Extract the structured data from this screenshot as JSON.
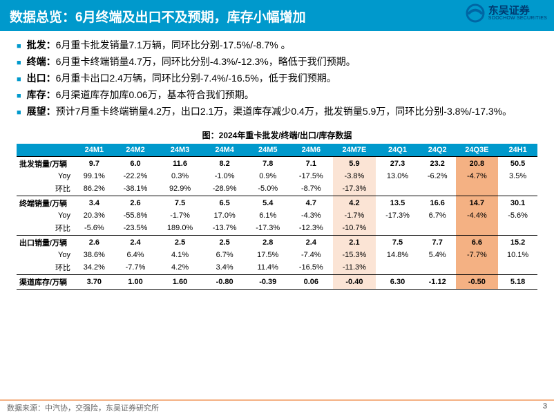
{
  "header": {
    "title": "数据总览：6月终端及出口不及预期，库存小幅增加"
  },
  "logo": {
    "cn": "东吴证券",
    "en": "SOOCHOW SECURITIES"
  },
  "bullets": [
    {
      "label": "批发：",
      "text": "6月重卡批发销量7.1万辆，同环比分别-17.5%/-8.7% 。"
    },
    {
      "label": "终端：",
      "text": "6月重卡终端销量4.7万，同环比分别-4.3%/-12.3%，略低于我们预期。"
    },
    {
      "label": "出口：",
      "text": "6月重卡出口2.4万辆，同环比分别-7.4%/-16.5%，低于我们预期。"
    },
    {
      "label": "库存：",
      "text": "6月渠道库存加库0.06万，基本符合我们预期。"
    },
    {
      "label": "展望：",
      "text": "预计7月重卡终端销量4.2万，出口2.1万，渠道库存减少0.4万，批发销量5.9万，同环比分别-3.8%/-17.3%。"
    }
  ],
  "chart_title": "图：2024年重卡批发/终端/出口/库存数据",
  "table": {
    "columns": [
      "",
      "24M1",
      "24M2",
      "24M3",
      "24M4",
      "24M5",
      "24M6",
      "24M7E",
      "24Q1",
      "24Q2",
      "24Q3E",
      "24H1"
    ],
    "hl_cols": {
      "7": "hl1",
      "10": "hl2"
    },
    "sections": [
      {
        "name": "批发销量/万辆",
        "vals": [
          "9.7",
          "6.0",
          "11.6",
          "8.2",
          "7.8",
          "7.1",
          "5.9",
          "27.3",
          "23.2",
          "20.8",
          "50.5"
        ],
        "rows": [
          {
            "name": "Yoy",
            "vals": [
              "99.1%",
              "-22.2%",
              "0.3%",
              "-1.0%",
              "0.9%",
              "-17.5%",
              "-3.8%",
              "13.0%",
              "-6.2%",
              "-4.7%",
              "3.5%"
            ]
          },
          {
            "name": "环比",
            "vals": [
              "86.2%",
              "-38.1%",
              "92.9%",
              "-28.9%",
              "-5.0%",
              "-8.7%",
              "-17.3%",
              "",
              "",
              "",
              ""
            ]
          }
        ]
      },
      {
        "name": "终端销量/万辆",
        "vals": [
          "3.4",
          "2.6",
          "7.5",
          "6.5",
          "5.4",
          "4.7",
          "4.2",
          "13.5",
          "16.6",
          "14.7",
          "30.1"
        ],
        "rows": [
          {
            "name": "Yoy",
            "vals": [
              "20.3%",
              "-55.8%",
              "-1.7%",
              "17.0%",
              "6.1%",
              "-4.3%",
              "-1.7%",
              "-17.3%",
              "6.7%",
              "-4.4%",
              "-5.6%"
            ]
          },
          {
            "name": "环比",
            "vals": [
              "-5.6%",
              "-23.5%",
              "189.0%",
              "-13.7%",
              "-17.3%",
              "-12.3%",
              "-10.7%",
              "",
              "",
              "",
              ""
            ]
          }
        ]
      },
      {
        "name": "出口销量/万辆",
        "vals": [
          "2.6",
          "2.4",
          "2.5",
          "2.5",
          "2.8",
          "2.4",
          "2.1",
          "7.5",
          "7.7",
          "6.6",
          "15.2"
        ],
        "rows": [
          {
            "name": "Yoy",
            "vals": [
              "38.6%",
              "6.4%",
              "4.1%",
              "6.7%",
              "17.5%",
              "-7.4%",
              "-15.3%",
              "14.8%",
              "5.4%",
              "-7.7%",
              "10.1%"
            ]
          },
          {
            "name": "环比",
            "vals": [
              "34.2%",
              "-7.7%",
              "4.2%",
              "3.4%",
              "11.4%",
              "-16.5%",
              "-11.3%",
              "",
              "",
              "",
              ""
            ]
          }
        ]
      },
      {
        "name": "渠道库存/万辆",
        "vals": [
          "3.70",
          "1.00",
          "1.60",
          "-0.80",
          "-0.39",
          "0.06",
          "-0.40",
          "6.30",
          "-1.12",
          "-0.50",
          "5.18"
        ],
        "rows": []
      }
    ]
  },
  "footer": {
    "source": "数据来源：中汽协，交强险，东吴证券研究所",
    "page": "3"
  }
}
